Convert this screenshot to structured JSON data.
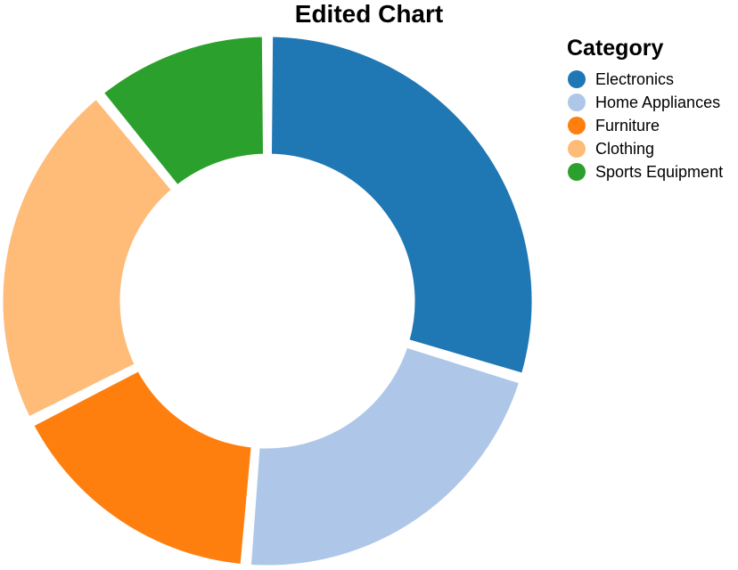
{
  "chart_data": {
    "type": "pie",
    "style": "donut",
    "title": "Edited Chart",
    "legend_title": "Category",
    "legend_position": "top-right",
    "categories": [
      "Electronics",
      "Home Appliances",
      "Furniture",
      "Clothing",
      "Sports Equipment"
    ],
    "values": [
      29.7,
      21.6,
      16.2,
      21.6,
      10.9
    ],
    "colors": [
      "#1f77b4",
      "#aec7e8",
      "#ff7f0e",
      "#ffbb78",
      "#2ca02c"
    ]
  }
}
